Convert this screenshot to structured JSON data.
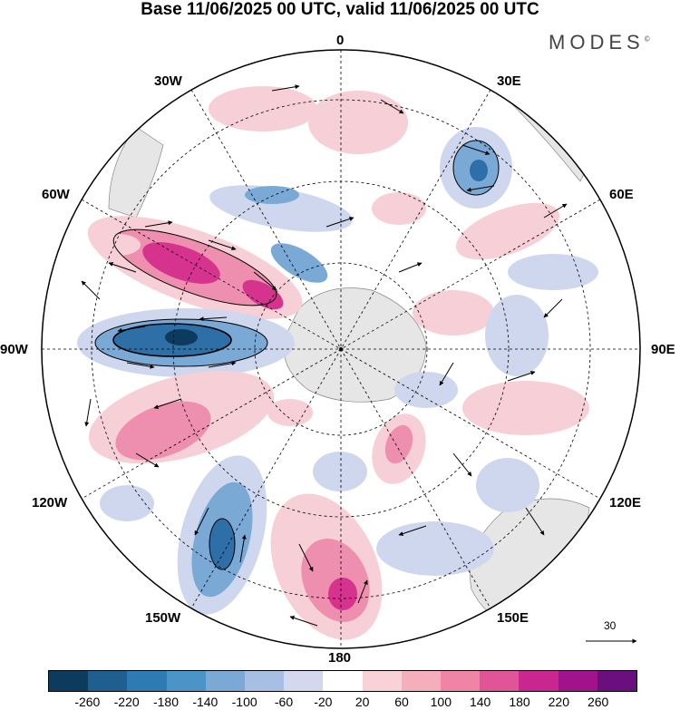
{
  "title": "Base 11/06/2025 00 UTC, valid 11/06/2025 00 UTC",
  "brand": "MODES",
  "brand_mark": "©",
  "longitude_labels": {
    "top": "0",
    "top_right": "30E",
    "upper_right": "60E",
    "right": "90E",
    "lower_right": "120E",
    "bottom_right": "150E",
    "bottom": "180",
    "bottom_left": "150W",
    "lower_left": "120W",
    "left": "90W",
    "upper_left": "60W",
    "top_left": "30W"
  },
  "vector_scale_label": "30",
  "colorbar": {
    "colors": [
      "#0d3b5e",
      "#1f5f8f",
      "#2e7bb4",
      "#4a94c8",
      "#7aa9d6",
      "#a6bfe2",
      "#d4d8ee",
      "#ffffff",
      "#f9d2d8",
      "#f5aebb",
      "#ef84a6",
      "#e05498",
      "#c9278f",
      "#a0138a",
      "#6a0f7e"
    ],
    "ticks": [
      "-260",
      "-220",
      "-180",
      "-140",
      "-100",
      "-60",
      "-20",
      "20",
      "60",
      "100",
      "140",
      "180",
      "220",
      "260"
    ]
  },
  "field_colors": {
    "neg_strong": "#2e6fa8",
    "neg_mid": "#7aa9d6",
    "neg_weak": "#cfd7ee",
    "pos_weak": "#f7cfd6",
    "pos_mid": "#ee8fb0",
    "pos_strong": "#d6338e",
    "land": "#e9e9e9"
  }
}
